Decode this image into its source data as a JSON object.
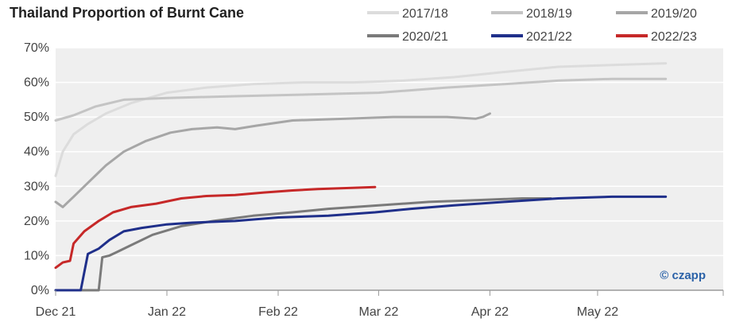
{
  "chart_data": {
    "type": "line",
    "title": "Thailand Proportion of Burnt Cane",
    "xlabel": "",
    "ylabel": "",
    "ylim": [
      0,
      70
    ],
    "y_ticks": [
      "0%",
      "10%",
      "20%",
      "30%",
      "40%",
      "50%",
      "60%",
      "70%"
    ],
    "x_ticks": [
      "Dec 21",
      "Jan 22",
      "Feb 22",
      "Mar 22",
      "Apr 22",
      "May 22"
    ],
    "x_range": [
      "2021-12-01",
      "2022-06-05"
    ],
    "grid": "horizontal",
    "legend_position": "top-right",
    "brand": "© czapp",
    "series": [
      {
        "name": "2017/18",
        "color": "#dcdcdc",
        "width": 3,
        "points": [
          [
            "2021-12-01",
            33
          ],
          [
            "2021-12-03",
            40
          ],
          [
            "2021-12-06",
            45
          ],
          [
            "2021-12-10",
            48
          ],
          [
            "2021-12-15",
            51
          ],
          [
            "2021-12-22",
            54
          ],
          [
            "2022-01-01",
            57
          ],
          [
            "2022-01-12",
            58.5
          ],
          [
            "2022-01-25",
            59.5
          ],
          [
            "2022-02-08",
            60
          ],
          [
            "2022-02-22",
            60
          ],
          [
            "2022-03-08",
            60.5
          ],
          [
            "2022-03-22",
            61.5
          ],
          [
            "2022-04-05",
            63
          ],
          [
            "2022-04-20",
            64.5
          ],
          [
            "2022-05-05",
            65
          ],
          [
            "2022-05-20",
            65.5
          ]
        ]
      },
      {
        "name": "2018/19",
        "color": "#c4c4c4",
        "width": 3,
        "points": [
          [
            "2021-12-01",
            49
          ],
          [
            "2021-12-06",
            50.5
          ],
          [
            "2021-12-12",
            53
          ],
          [
            "2021-12-20",
            55
          ],
          [
            "2022-01-01",
            55.5
          ],
          [
            "2022-01-20",
            56
          ],
          [
            "2022-02-10",
            56.5
          ],
          [
            "2022-03-01",
            57
          ],
          [
            "2022-03-20",
            58.5
          ],
          [
            "2022-04-05",
            59.5
          ],
          [
            "2022-04-20",
            60.5
          ],
          [
            "2022-05-05",
            61
          ],
          [
            "2022-05-20",
            61
          ]
        ]
      },
      {
        "name": "2019/20",
        "color": "#a6a6a6",
        "width": 3,
        "points": [
          [
            "2021-12-01",
            25.5
          ],
          [
            "2021-12-03",
            24
          ],
          [
            "2021-12-06",
            27
          ],
          [
            "2021-12-10",
            31
          ],
          [
            "2021-12-15",
            36
          ],
          [
            "2021-12-20",
            40
          ],
          [
            "2021-12-26",
            43
          ],
          [
            "2022-01-02",
            45.5
          ],
          [
            "2022-01-08",
            46.5
          ],
          [
            "2022-01-15",
            47
          ],
          [
            "2022-01-20",
            46.5
          ],
          [
            "2022-01-26",
            47.5
          ],
          [
            "2022-02-05",
            49
          ],
          [
            "2022-02-20",
            49.5
          ],
          [
            "2022-03-05",
            50
          ],
          [
            "2022-03-20",
            50
          ],
          [
            "2022-03-28",
            49.5
          ],
          [
            "2022-03-30",
            50
          ],
          [
            "2022-04-01",
            51
          ]
        ]
      },
      {
        "name": "2020/21",
        "color": "#7a7a7a",
        "width": 3,
        "points": [
          [
            "2021-12-01",
            0
          ],
          [
            "2021-12-13",
            0
          ],
          [
            "2021-12-14",
            9.5
          ],
          [
            "2021-12-16",
            10
          ],
          [
            "2021-12-18",
            11
          ],
          [
            "2021-12-22",
            13
          ],
          [
            "2021-12-28",
            16
          ],
          [
            "2022-01-05",
            18.5
          ],
          [
            "2022-01-14",
            20
          ],
          [
            "2022-01-25",
            21.5
          ],
          [
            "2022-02-05",
            22.5
          ],
          [
            "2022-02-15",
            23.5
          ],
          [
            "2022-03-01",
            24.5
          ],
          [
            "2022-03-15",
            25.5
          ],
          [
            "2022-03-28",
            26
          ],
          [
            "2022-04-10",
            26.5
          ],
          [
            "2022-04-18",
            26.5
          ]
        ]
      },
      {
        "name": "2021/22",
        "color": "#1f2f8a",
        "width": 3,
        "points": [
          [
            "2021-12-01",
            0
          ],
          [
            "2021-12-08",
            0
          ],
          [
            "2021-12-10",
            10.5
          ],
          [
            "2021-12-13",
            12
          ],
          [
            "2021-12-16",
            14.5
          ],
          [
            "2021-12-20",
            17
          ],
          [
            "2021-12-25",
            18
          ],
          [
            "2022-01-01",
            19
          ],
          [
            "2022-01-08",
            19.5
          ],
          [
            "2022-01-20",
            20
          ],
          [
            "2022-02-01",
            21
          ],
          [
            "2022-02-15",
            21.5
          ],
          [
            "2022-02-28",
            22.5
          ],
          [
            "2022-03-10",
            23.5
          ],
          [
            "2022-03-22",
            24.5
          ],
          [
            "2022-04-05",
            25.5
          ],
          [
            "2022-04-20",
            26.5
          ],
          [
            "2022-05-05",
            27
          ],
          [
            "2022-05-20",
            27
          ]
        ]
      },
      {
        "name": "2022/23",
        "color": "#c62828",
        "width": 3,
        "points": [
          [
            "2021-12-01",
            6.5
          ],
          [
            "2021-12-03",
            8
          ],
          [
            "2021-12-05",
            8.5
          ],
          [
            "2021-12-06",
            13.5
          ],
          [
            "2021-12-09",
            17
          ],
          [
            "2021-12-13",
            20
          ],
          [
            "2021-12-17",
            22.5
          ],
          [
            "2021-12-22",
            24
          ],
          [
            "2021-12-29",
            25
          ],
          [
            "2022-01-05",
            26.5
          ],
          [
            "2022-01-12",
            27.2
          ],
          [
            "2022-01-20",
            27.5
          ],
          [
            "2022-01-28",
            28.2
          ],
          [
            "2022-02-05",
            28.8
          ],
          [
            "2022-02-12",
            29.2
          ],
          [
            "2022-02-20",
            29.5
          ],
          [
            "2022-02-28",
            29.8
          ]
        ]
      }
    ]
  },
  "legend": [
    {
      "label": "2017/18"
    },
    {
      "label": "2018/19"
    },
    {
      "label": "2019/20"
    },
    {
      "label": "2020/21"
    },
    {
      "label": "2021/22"
    },
    {
      "label": "2022/23"
    }
  ]
}
